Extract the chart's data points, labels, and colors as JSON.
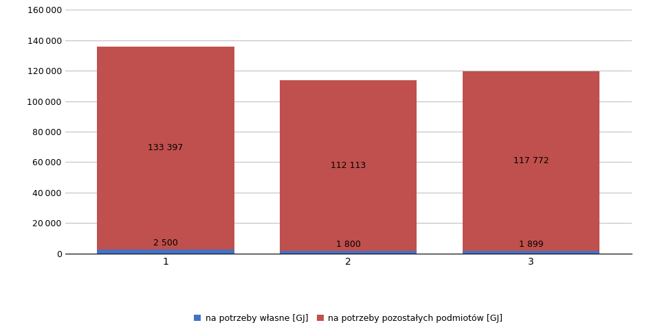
{
  "categories": [
    "1",
    "2",
    "3"
  ],
  "values_own": [
    2500,
    1800,
    1899
  ],
  "values_others": [
    133397,
    112113,
    117772
  ],
  "color_own": "#4472C4",
  "color_others": "#C0504D",
  "ylim": [
    0,
    160000
  ],
  "yticks": [
    0,
    20000,
    40000,
    60000,
    80000,
    100000,
    120000,
    140000,
    160000
  ],
  "legend_own": "na potrzeby własne [GJ]",
  "legend_others": "na potrzeby pozostałych podmiotów [GJ]",
  "label_own": [
    "2 500",
    "1 800",
    "1 899"
  ],
  "label_others": [
    "133 397",
    "112 113",
    "117 772"
  ],
  "background_color": "#FFFFFF",
  "grid_color": "#C0C0C0",
  "bar_width": 0.75
}
